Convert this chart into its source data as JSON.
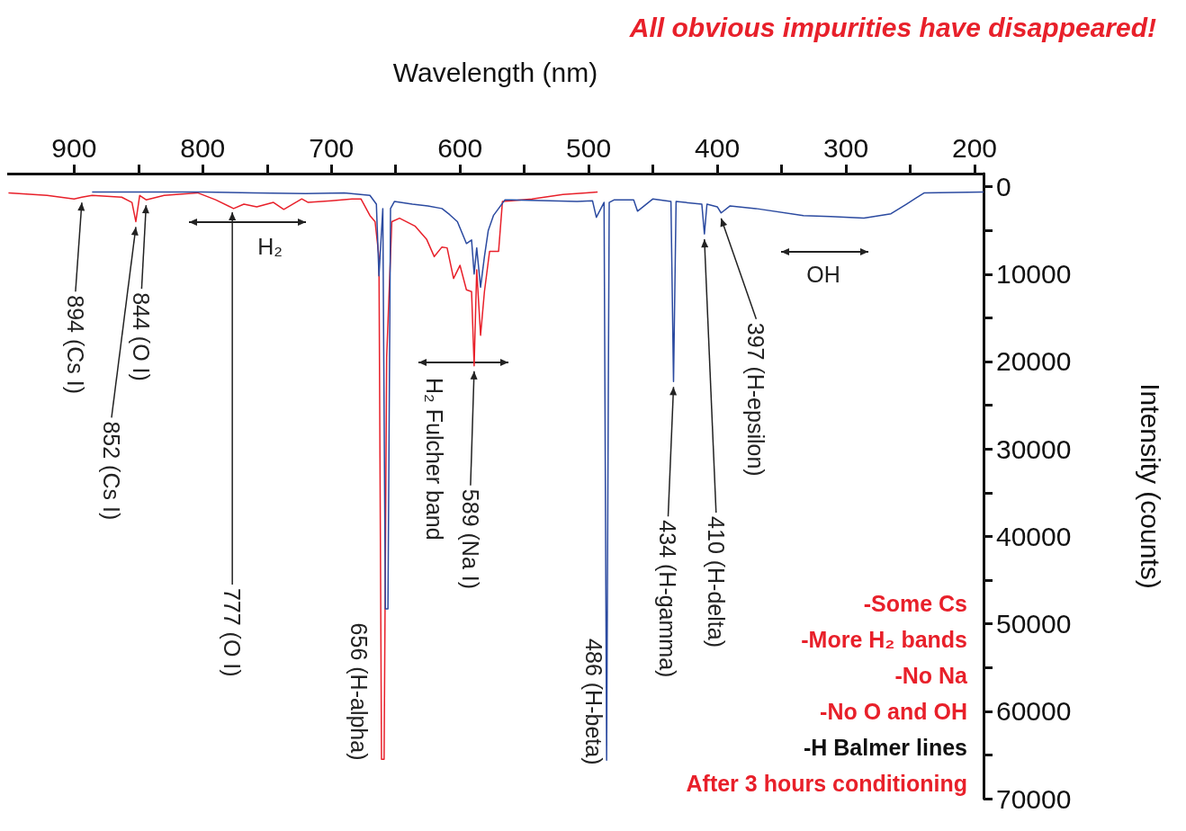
{
  "chart_data": {
    "type": "line",
    "title": "All obvious impurities have disappeared!",
    "xlabel": "Wavelength (nm)",
    "ylabel": "Intensity (counts)",
    "xlim": [
      952,
      193
    ],
    "ylim": [
      70000,
      -1500
    ],
    "xticks": [
      200,
      {
        "value": 250,
        "label": null
      },
      300,
      {
        "value": 350,
        "label": null
      },
      400,
      {
        "value": 450,
        "label": null
      },
      500,
      {
        "value": 550,
        "label": null
      },
      600,
      {
        "value": 650,
        "label": null
      },
      700,
      {
        "value": 750,
        "label": null
      },
      800,
      {
        "value": 850,
        "label": null
      },
      900
    ],
    "yticks": [
      0,
      {
        "value": 5000,
        "label": null
      },
      10000,
      {
        "value": 15000,
        "label": null
      },
      20000,
      {
        "value": 25000,
        "label": null
      },
      30000,
      {
        "value": 35000,
        "label": null
      },
      40000,
      {
        "value": 45000,
        "label": null
      },
      50000,
      {
        "value": 55000,
        "label": null
      },
      60000,
      {
        "value": 65000,
        "label": null
      },
      70000
    ],
    "grid": false,
    "marker": "none",
    "line_style": "solid",
    "series": [
      {
        "color": "#e8202a",
        "x": [
          493,
          502,
          520,
          544,
          560,
          567,
          570,
          577,
          581,
          584,
          587,
          589,
          591,
          595,
          600,
          605,
          610,
          614,
          620,
          626,
          635,
          647,
          653,
          657,
          659,
          661,
          663,
          666,
          670,
          677,
          684,
          700,
          718,
          723,
          737,
          745,
          758,
          768,
          776,
          790,
          804,
          830,
          844,
          849,
          852,
          855,
          863,
          886,
          894,
          900,
          921,
          951
        ],
        "values": [
          600,
          700,
          900,
          1400,
          1600,
          1700,
          7400,
          7400,
          12000,
          17000,
          9500,
          20500,
          12000,
          11800,
          9000,
          10500,
          7000,
          6900,
          8000,
          6000,
          4500,
          3600,
          4000,
          19500,
          65500,
          65500,
          8000,
          4000,
          3300,
          1400,
          1400,
          1600,
          1800,
          1400,
          2600,
          1800,
          2300,
          2000,
          2500,
          1500,
          700,
          1000,
          1500,
          1000,
          4000,
          1800,
          1200,
          1000,
          1200,
          1400,
          1000,
          700
        ]
      },
      {
        "color": "#2b4aa0",
        "x": [
          193,
          239,
          253,
          265,
          286,
          312,
          333,
          370,
          390,
          397,
          400,
          408,
          410,
          412,
          425,
          432,
          434,
          436,
          450,
          462,
          465,
          480,
          484,
          486,
          488,
          494,
          497,
          509,
          530,
          560,
          565,
          570,
          574,
          578,
          581,
          584,
          587,
          589,
          591,
          595,
          602,
          608,
          614,
          625,
          637,
          651,
          654,
          656,
          658,
          660,
          663,
          665,
          670,
          690,
          720,
          760,
          800,
          850,
          886
        ],
        "values": [
          600,
          700,
          2000,
          3100,
          3600,
          3400,
          3300,
          2500,
          2200,
          3000,
          2300,
          2000,
          5400,
          2000,
          1800,
          1700,
          22300,
          1700,
          1400,
          2800,
          1500,
          1500,
          1800,
          65600,
          1800,
          3500,
          1600,
          1700,
          1600,
          1500,
          1500,
          2500,
          3300,
          5000,
          8000,
          11500,
          7000,
          10000,
          6100,
          6500,
          4000,
          3200,
          2500,
          2200,
          2000,
          1700,
          2500,
          48300,
          48300,
          2500,
          10200,
          2000,
          1000,
          700,
          800,
          700,
          600,
          600,
          600
        ]
      }
    ],
    "annotations": [
      {
        "text": "397 (H-epsilon)",
        "x": 397,
        "y": 3000
      },
      {
        "text": "410 (H-delta)",
        "x": 410,
        "y": 5400
      },
      {
        "text": "434 (H-gamma)",
        "x": 434,
        "y": 22300
      },
      {
        "text": "486 (H-beta)",
        "x": 486,
        "y": 51700
      },
      {
        "text": "589 (Na I)",
        "x": 589,
        "y": 20500
      },
      {
        "text": "656 (H-alpha)",
        "x": 656,
        "y": 49900
      },
      {
        "text": "777 (O I)",
        "x": 777,
        "y": 2300
      },
      {
        "text": "844 (O I)",
        "x": 844,
        "y": 1500
      },
      {
        "text": "852 (Cs I)",
        "x": 852,
        "y": 4000
      },
      {
        "text": "894 (Cs I)",
        "x": 894,
        "y": 1200
      },
      "H₂ Fulcher band",
      "H₂",
      "OH",
      "After 3 hours conditioning",
      "-H Balmer lines",
      "-No O and OH",
      "-No Na",
      "-More H₂ bands",
      "-Some Cs"
    ]
  }
}
